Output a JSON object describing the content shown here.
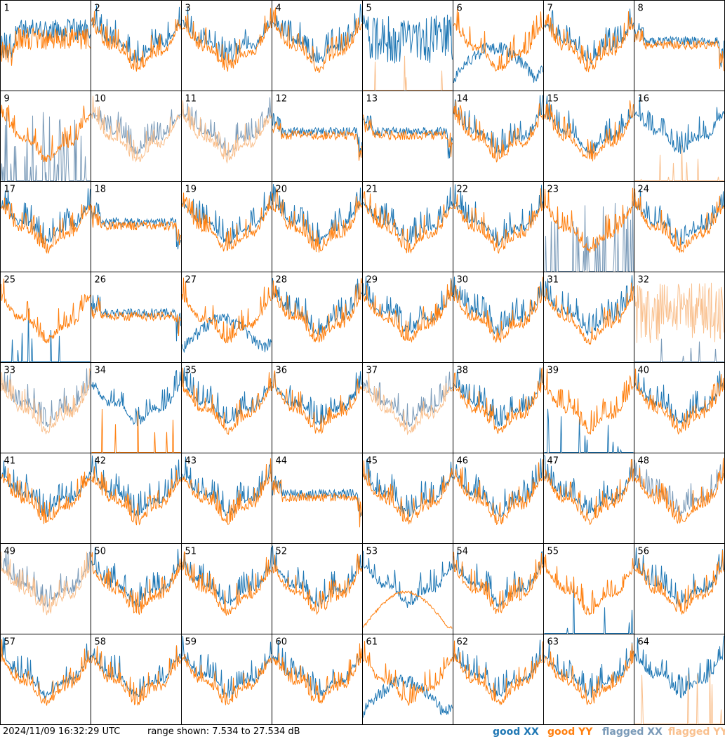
{
  "chart_data": {
    "type": "line",
    "description_text": {
      "timestamp": "2024/11/09 16:32:29 UTC",
      "range_text": "range shown: 7.534 to 27.534 dB"
    },
    "ylim": [
      7.534,
      27.534
    ],
    "legend": [
      {
        "label": "good XX",
        "color": "#1f77b4"
      },
      {
        "label": "good YY",
        "color": "#ff7f0e"
      },
      {
        "label": "flagged XX",
        "color": "#7a9ab8"
      },
      {
        "label": "flagged YY",
        "color": "#f9c08e"
      }
    ],
    "grid_layout": {
      "columns": 8,
      "rows": 8
    },
    "tiles": [
      {
        "id": "1",
        "pattern": "drop",
        "xx": "good",
        "yy": "good"
      },
      {
        "id": "2",
        "pattern": "normal",
        "xx": "good",
        "yy": "good"
      },
      {
        "id": "3",
        "pattern": "normal",
        "xx": "good",
        "yy": "good"
      },
      {
        "id": "4",
        "pattern": "normal",
        "xx": "good",
        "yy": "good"
      },
      {
        "id": "5",
        "pattern": "xx_spiky_yy_low",
        "xx": "good",
        "yy": "flagged"
      },
      {
        "id": "6",
        "pattern": "xx_dip",
        "xx": "good",
        "yy": "good"
      },
      {
        "id": "7",
        "pattern": "normal",
        "xx": "good",
        "yy": "good"
      },
      {
        "id": "8",
        "pattern": "flat",
        "xx": "good",
        "yy": "good"
      },
      {
        "id": "9",
        "pattern": "xx_spikes",
        "xx": "flagged",
        "yy": "good"
      },
      {
        "id": "10",
        "pattern": "normal",
        "xx": "flagged",
        "yy": "flagged"
      },
      {
        "id": "11",
        "pattern": "normal",
        "xx": "flagged",
        "yy": "flagged"
      },
      {
        "id": "12",
        "pattern": "flat",
        "xx": "good",
        "yy": "good"
      },
      {
        "id": "13",
        "pattern": "flat",
        "xx": "good",
        "yy": "good"
      },
      {
        "id": "14",
        "pattern": "normal",
        "xx": "good",
        "yy": "good"
      },
      {
        "id": "15",
        "pattern": "normal",
        "xx": "good",
        "yy": "good"
      },
      {
        "id": "16",
        "pattern": "xx_only",
        "xx": "good",
        "yy": "flagged"
      },
      {
        "id": "17",
        "pattern": "normal",
        "xx": "good",
        "yy": "good"
      },
      {
        "id": "18",
        "pattern": "flat",
        "xx": "good",
        "yy": "good"
      },
      {
        "id": "19",
        "pattern": "normal",
        "xx": "good",
        "yy": "good"
      },
      {
        "id": "20",
        "pattern": "normal",
        "xx": "good",
        "yy": "good"
      },
      {
        "id": "21",
        "pattern": "normal",
        "xx": "good",
        "yy": "good"
      },
      {
        "id": "22",
        "pattern": "normal",
        "xx": "good",
        "yy": "good"
      },
      {
        "id": "23",
        "pattern": "xx_spikes",
        "xx": "flagged",
        "yy": "good"
      },
      {
        "id": "24",
        "pattern": "normal",
        "xx": "good",
        "yy": "good"
      },
      {
        "id": "25",
        "pattern": "yy_only",
        "xx": "good",
        "yy": "good"
      },
      {
        "id": "26",
        "pattern": "flat",
        "xx": "good",
        "yy": "good"
      },
      {
        "id": "27",
        "pattern": "xx_dip",
        "xx": "good",
        "yy": "good"
      },
      {
        "id": "28",
        "pattern": "normal",
        "xx": "good",
        "yy": "good"
      },
      {
        "id": "29",
        "pattern": "normal",
        "xx": "good",
        "yy": "good"
      },
      {
        "id": "30",
        "pattern": "normal",
        "xx": "good",
        "yy": "good"
      },
      {
        "id": "31",
        "pattern": "normal",
        "xx": "good",
        "yy": "good"
      },
      {
        "id": "32",
        "pattern": "yy_spiky",
        "xx": "flagged",
        "yy": "flagged"
      },
      {
        "id": "33",
        "pattern": "normal",
        "xx": "flagged",
        "yy": "flagged"
      },
      {
        "id": "34",
        "pattern": "xx_only",
        "xx": "good",
        "yy": "good"
      },
      {
        "id": "35",
        "pattern": "normal",
        "xx": "good",
        "yy": "good"
      },
      {
        "id": "36",
        "pattern": "normal",
        "xx": "good",
        "yy": "good"
      },
      {
        "id": "37",
        "pattern": "normal",
        "xx": "flagged",
        "yy": "flagged"
      },
      {
        "id": "38",
        "pattern": "normal",
        "xx": "good",
        "yy": "good"
      },
      {
        "id": "39",
        "pattern": "yy_only",
        "xx": "good",
        "yy": "good"
      },
      {
        "id": "40",
        "pattern": "normal",
        "xx": "good",
        "yy": "good"
      },
      {
        "id": "41",
        "pattern": "normal",
        "xx": "good",
        "yy": "good"
      },
      {
        "id": "42",
        "pattern": "normal",
        "xx": "good",
        "yy": "good"
      },
      {
        "id": "43",
        "pattern": "normal",
        "xx": "good",
        "yy": "good"
      },
      {
        "id": "44",
        "pattern": "flat",
        "xx": "good",
        "yy": "good"
      },
      {
        "id": "45",
        "pattern": "normal",
        "xx": "good",
        "yy": "good"
      },
      {
        "id": "46",
        "pattern": "normal",
        "xx": "good",
        "yy": "good"
      },
      {
        "id": "47",
        "pattern": "normal",
        "xx": "good",
        "yy": "good"
      },
      {
        "id": "48",
        "pattern": "normal",
        "xx": "flagged",
        "yy": "good"
      },
      {
        "id": "49",
        "pattern": "normal",
        "xx": "flagged",
        "yy": "flagged"
      },
      {
        "id": "50",
        "pattern": "normal",
        "xx": "good",
        "yy": "good"
      },
      {
        "id": "51",
        "pattern": "normal",
        "xx": "good",
        "yy": "good"
      },
      {
        "id": "52",
        "pattern": "normal",
        "xx": "good",
        "yy": "good"
      },
      {
        "id": "53",
        "pattern": "yy_dip",
        "xx": "good",
        "yy": "good"
      },
      {
        "id": "54",
        "pattern": "normal",
        "xx": "good",
        "yy": "good"
      },
      {
        "id": "55",
        "pattern": "yy_only",
        "xx": "good",
        "yy": "good"
      },
      {
        "id": "56",
        "pattern": "normal",
        "xx": "good",
        "yy": "good"
      },
      {
        "id": "57",
        "pattern": "normal",
        "xx": "good",
        "yy": "good"
      },
      {
        "id": "58",
        "pattern": "normal",
        "xx": "good",
        "yy": "good"
      },
      {
        "id": "59",
        "pattern": "normal",
        "xx": "good",
        "yy": "good"
      },
      {
        "id": "60",
        "pattern": "normal",
        "xx": "good",
        "yy": "good"
      },
      {
        "id": "61",
        "pattern": "xx_dip",
        "xx": "good",
        "yy": "good"
      },
      {
        "id": "62",
        "pattern": "normal",
        "xx": "good",
        "yy": "good"
      },
      {
        "id": "63",
        "pattern": "normal",
        "xx": "good",
        "yy": "good"
      },
      {
        "id": "64",
        "pattern": "xx_only",
        "xx": "good",
        "yy": "flagged"
      }
    ]
  }
}
